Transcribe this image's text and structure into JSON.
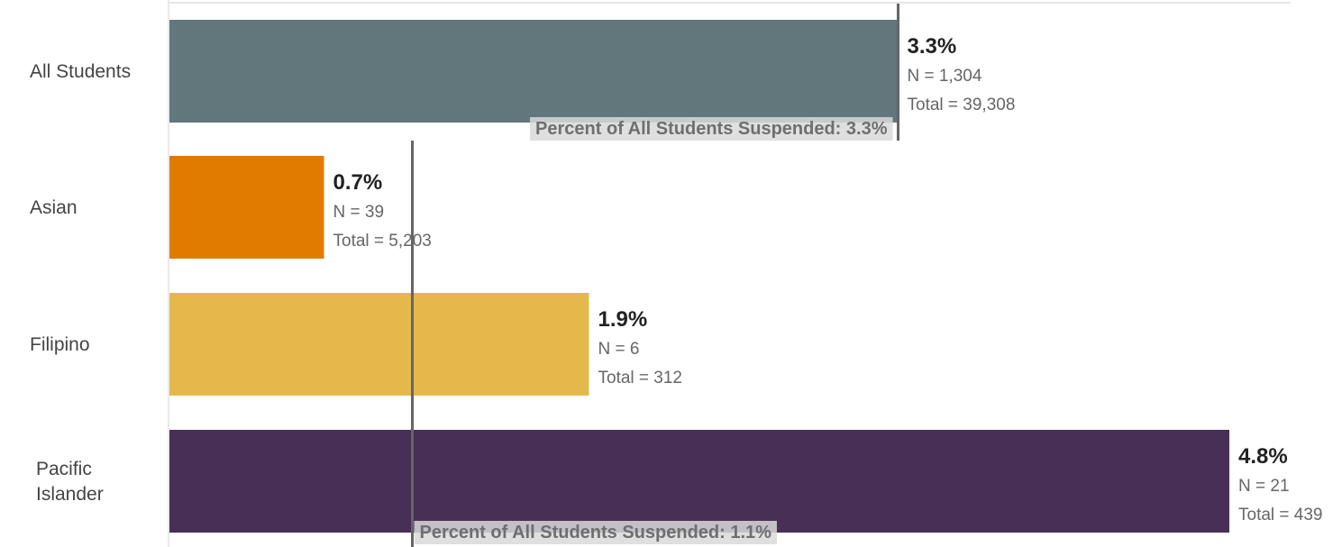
{
  "chart_data": {
    "type": "bar",
    "orientation": "horizontal",
    "categories": [
      "All Students",
      "Asian",
      "Filipino",
      "Pacific Islander"
    ],
    "category_lines": [
      [
        "All Students"
      ],
      [
        "Asian"
      ],
      [
        "Filipino"
      ],
      [
        "Pacific",
        "Islander"
      ]
    ],
    "values": [
      3.3,
      0.7,
      1.9,
      4.8
    ],
    "value_labels": [
      "3.3%",
      "0.7%",
      "1.9%",
      "4.8%"
    ],
    "n_labels": [
      "N = 1,304",
      "N = 39",
      "N = 6",
      "N = 21"
    ],
    "total_labels": [
      "Total = 39,308",
      "Total = 5,203",
      "Total = 312",
      "Total = 439"
    ],
    "colors": [
      "#62777c",
      "#e07b00",
      "#e5b84c",
      "#472f56"
    ],
    "reference_lines": [
      {
        "value": 3.3,
        "label": "Percent of All Students Suspended: 3.3%",
        "applies_to": [
          "All Students"
        ]
      },
      {
        "value": 1.1,
        "label": "Percent of All Students Suspended: 1.1%",
        "applies_to": [
          "Asian",
          "Filipino",
          "Pacific Islander"
        ]
      }
    ],
    "xlim": [
      0,
      5.0
    ],
    "grid": false,
    "legend": "none"
  }
}
